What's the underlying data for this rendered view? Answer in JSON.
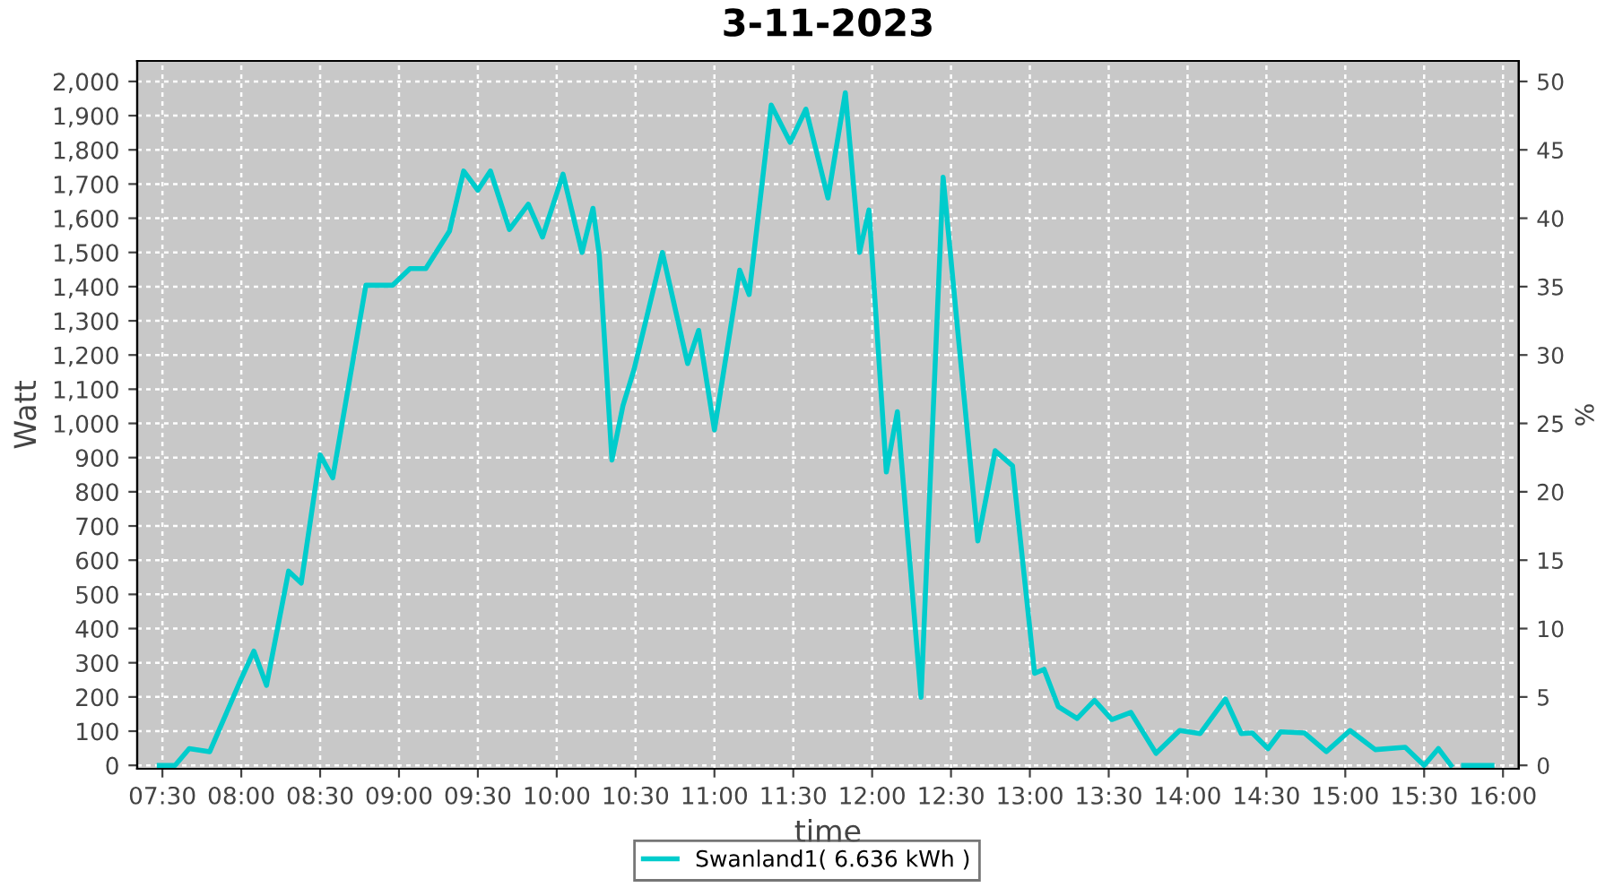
{
  "chart_data": {
    "type": "line",
    "title": "3-11-2023",
    "xlabel": "time",
    "ylabel": "Watt",
    "y2label": "%",
    "x": [
      7.48,
      7.58,
      7.67,
      7.8,
      7.99,
      8.08,
      8.16,
      8.3,
      8.38,
      8.5,
      8.58,
      8.79,
      8.96,
      9.07,
      9.17,
      9.32,
      9.41,
      9.5,
      9.58,
      9.7,
      9.82,
      9.91,
      10.04,
      10.16,
      10.23,
      10.27,
      10.35,
      10.42,
      10.49,
      10.67,
      10.83,
      10.9,
      11.0,
      11.16,
      11.22,
      11.36,
      11.48,
      11.58,
      11.72,
      11.83,
      11.92,
      11.98,
      12.09,
      12.16,
      12.31,
      12.45,
      12.67,
      12.78,
      12.89,
      13.03,
      13.09,
      13.18,
      13.3,
      13.41,
      13.52,
      13.64,
      13.8,
      13.95,
      14.08,
      14.24,
      14.34,
      14.41,
      14.51,
      14.59,
      14.74,
      14.88,
      15.03,
      15.19,
      15.38,
      15.5,
      15.59,
      15.67,
      15.71,
      15.75,
      15.93
    ],
    "series": [
      {
        "name": "Swanland1( 6.636 kWh )",
        "color": "#00cccc",
        "values": [
          0,
          0,
          49,
          40,
          243,
          334,
          234,
          568,
          533,
          908,
          841,
          1404,
          1404,
          1453,
          1453,
          1562,
          1738,
          1682,
          1738,
          1567,
          1641,
          1545,
          1729,
          1500,
          1629,
          1492,
          893,
          1052,
          1157,
          1500,
          1175,
          1272,
          981,
          1448,
          1377,
          1931,
          1822,
          1919,
          1659,
          1967,
          1500,
          1624,
          858,
          1034,
          199,
          1720,
          656,
          920,
          876,
          269,
          281,
          172,
          137,
          190,
          134,
          155,
          35,
          102,
          93,
          194,
          93,
          95,
          49,
          98,
          95,
          40,
          102,
          46,
          53,
          0,
          49,
          0,
          null,
          0,
          0
        ]
      }
    ],
    "xlim": [
      7.34,
      16.1
    ],
    "xticks": [
      {
        "value": 7.5,
        "label": "07:30"
      },
      {
        "value": 8,
        "label": "08:00"
      },
      {
        "value": 8.5,
        "label": "08:30"
      },
      {
        "value": 9,
        "label": "09:00"
      },
      {
        "value": 9.5,
        "label": "09:30"
      },
      {
        "value": 10,
        "label": "10:00"
      },
      {
        "value": 10.5,
        "label": "10:30"
      },
      {
        "value": 11,
        "label": "11:00"
      },
      {
        "value": 11.5,
        "label": "11:30"
      },
      {
        "value": 12,
        "label": "12:00"
      },
      {
        "value": 12.5,
        "label": "12:30"
      },
      {
        "value": 13,
        "label": "13:00"
      },
      {
        "value": 13.5,
        "label": "13:30"
      },
      {
        "value": 14,
        "label": "14:00"
      },
      {
        "value": 14.5,
        "label": "14:30"
      },
      {
        "value": 15,
        "label": "15:00"
      },
      {
        "value": 15.5,
        "label": "15:30"
      },
      {
        "value": 16,
        "label": "16:00"
      }
    ],
    "ylim": [
      -10,
      2060
    ],
    "yticks": [
      0,
      100,
      200,
      300,
      400,
      500,
      600,
      700,
      800,
      900,
      {
        "value": 1000,
        "label": "1,000"
      },
      {
        "value": 1100,
        "label": "1,100"
      },
      {
        "value": 1200,
        "label": "1,200"
      },
      {
        "value": 1300,
        "label": "1,300"
      },
      {
        "value": 1400,
        "label": "1,400"
      },
      {
        "value": 1500,
        "label": "1,500"
      },
      {
        "value": 1600,
        "label": "1,600"
      },
      {
        "value": 1700,
        "label": "1,700"
      },
      {
        "value": 1800,
        "label": "1,800"
      },
      {
        "value": 1900,
        "label": "1,900"
      },
      {
        "value": 2000,
        "label": "2,000"
      }
    ],
    "y2lim": [
      -0.25,
      51.5
    ],
    "y2ticks": [
      0,
      5,
      10,
      15,
      20,
      25,
      30,
      35,
      40,
      45,
      50
    ],
    "grid": true,
    "legend": "bottom",
    "marker": "none",
    "line_style": "solid"
  }
}
